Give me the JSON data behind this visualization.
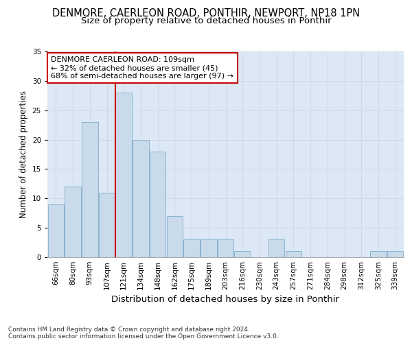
{
  "title": "DENMORE, CAERLEON ROAD, PONTHIR, NEWPORT, NP18 1PN",
  "subtitle": "Size of property relative to detached houses in Ponthir",
  "xlabel": "Distribution of detached houses by size in Ponthir",
  "ylabel": "Number of detached properties",
  "categories": [
    "66sqm",
    "80sqm",
    "93sqm",
    "107sqm",
    "121sqm",
    "134sqm",
    "148sqm",
    "162sqm",
    "175sqm",
    "189sqm",
    "203sqm",
    "216sqm",
    "230sqm",
    "243sqm",
    "257sqm",
    "271sqm",
    "284sqm",
    "298sqm",
    "312sqm",
    "325sqm",
    "339sqm"
  ],
  "values": [
    9,
    12,
    23,
    11,
    28,
    20,
    18,
    7,
    3,
    3,
    3,
    1,
    0,
    3,
    1,
    0,
    0,
    0,
    0,
    1,
    1
  ],
  "bar_color": "#c9daea",
  "bar_edge_color": "#8ab4d0",
  "bar_edge_width": 0.7,
  "ref_line_x": 3.5,
  "ref_line_color": "#cc0000",
  "annotation_text": "DENMORE CAERLEON ROAD: 109sqm\n← 32% of detached houses are smaller (45)\n68% of semi-detached houses are larger (97) →",
  "annotation_box_color": "#ffffff",
  "annotation_box_edge_color": "#cc0000",
  "ylim": [
    0,
    35
  ],
  "yticks": [
    0,
    5,
    10,
    15,
    20,
    25,
    30,
    35
  ],
  "grid_color": "#d0d8e8",
  "background_color": "#dce8f5",
  "footer": "Contains HM Land Registry data © Crown copyright and database right 2024.\nContains public sector information licensed under the Open Government Licence v3.0.",
  "title_fontsize": 10.5,
  "subtitle_fontsize": 9.5,
  "xlabel_fontsize": 9.5,
  "ylabel_fontsize": 8.5,
  "tick_fontsize": 7.5,
  "annotation_fontsize": 8,
  "footer_fontsize": 6.5
}
